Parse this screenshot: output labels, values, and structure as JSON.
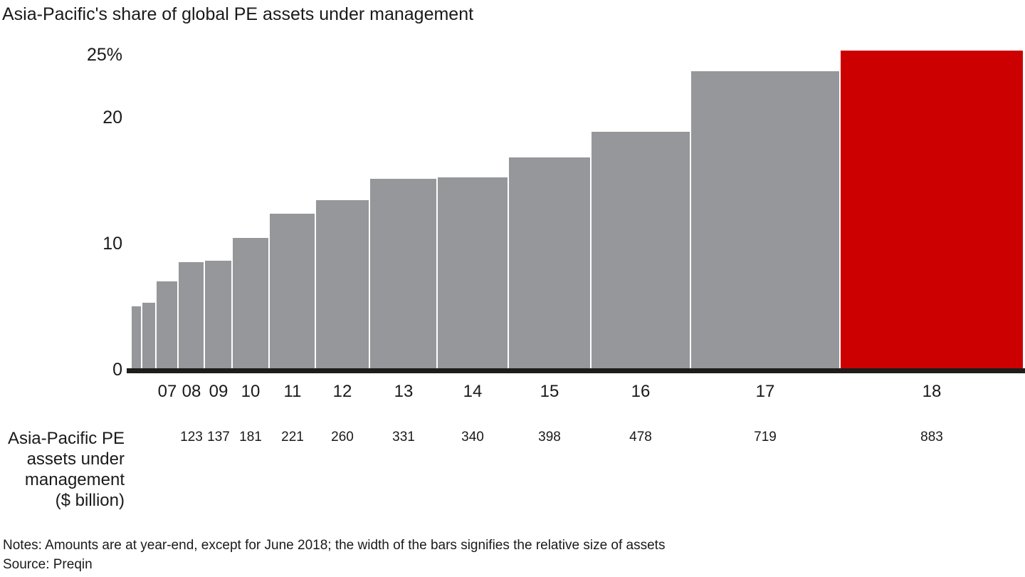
{
  "title": "Asia-Pacific's share of global PE assets under management",
  "notes": "Notes: Amounts are at year-end, except for June 2018; the width of the bars signifies the relative size of assets",
  "source": "Source: Preqin",
  "left_label": {
    "lines": [
      "Asia-Pacific PE",
      "assets under",
      "management",
      "($ billion)"
    ]
  },
  "y_axis": {
    "ticks": [
      {
        "label": "25%",
        "value": 25
      },
      {
        "label": "20",
        "value": 20
      },
      {
        "label": "10",
        "value": 10
      },
      {
        "label": "0",
        "value": 0
      }
    ]
  },
  "colors": {
    "bar": "#96979a",
    "highlight": "#cc0000",
    "axis": "#1d1d1b",
    "text": "#1a1a1a"
  },
  "chart_data": {
    "type": "bar",
    "variant": "variable-width",
    "title": "Asia-Pacific's share of global PE assets under management",
    "y_unit": "%",
    "ylim": [
      0,
      25
    ],
    "grid": false,
    "bars": [
      {
        "year": "",
        "share_pct": 4.9,
        "aum_billion": null,
        "rel_width": 13,
        "highlight": false
      },
      {
        "year": "",
        "share_pct": 5.2,
        "aum_billion": null,
        "rel_width": 18,
        "highlight": false
      },
      {
        "year": "07",
        "share_pct": 6.9,
        "aum_billion": null,
        "rel_width": 29,
        "highlight": false
      },
      {
        "year": "08",
        "share_pct": 8.4,
        "aum_billion": 123,
        "rel_width": 35,
        "highlight": false
      },
      {
        "year": "09",
        "share_pct": 8.5,
        "aum_billion": 137,
        "rel_width": 37,
        "highlight": false
      },
      {
        "year": "10",
        "share_pct": 10.3,
        "aum_billion": 181,
        "rel_width": 50,
        "highlight": false
      },
      {
        "year": "11",
        "share_pct": 12.2,
        "aum_billion": 221,
        "rel_width": 63,
        "highlight": false
      },
      {
        "year": "12",
        "share_pct": 13.3,
        "aum_billion": 260,
        "rel_width": 74,
        "highlight": false
      },
      {
        "year": "13",
        "share_pct": 15.0,
        "aum_billion": 331,
        "rel_width": 93,
        "highlight": false
      },
      {
        "year": "14",
        "share_pct": 15.1,
        "aum_billion": 340,
        "rel_width": 98,
        "highlight": false
      },
      {
        "year": "15",
        "share_pct": 16.7,
        "aum_billion": 398,
        "rel_width": 114,
        "highlight": false
      },
      {
        "year": "16",
        "share_pct": 18.7,
        "aum_billion": 478,
        "rel_width": 138,
        "highlight": false
      },
      {
        "year": "17",
        "share_pct": 23.5,
        "aum_billion": 719,
        "rel_width": 208,
        "highlight": false
      },
      {
        "year": "18",
        "share_pct": 25.1,
        "aum_billion": 883,
        "rel_width": 256,
        "highlight": true
      }
    ]
  }
}
